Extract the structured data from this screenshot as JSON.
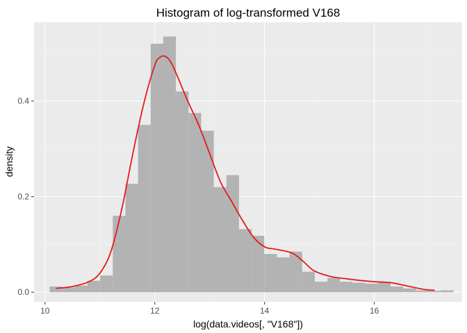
{
  "chart_data": {
    "type": "bar",
    "title": "Histogram of log-transformed V168",
    "xlabel": "log(data.videos[, \"V168\"])",
    "ylabel": "density",
    "xlim": [
      9.8,
      17.6
    ],
    "ylim": [
      -0.02,
      0.565
    ],
    "x_ticks": [
      10,
      12,
      14,
      16
    ],
    "y_ticks": [
      0.0,
      0.2,
      0.4
    ],
    "x_tick_labels": [
      "10",
      "12",
      "14",
      "16"
    ],
    "y_tick_labels": [
      "0.0",
      "0.2",
      "0.4"
    ],
    "grid": true,
    "background": "#ebebeb",
    "bar_color": "#b3b3b3",
    "line_color": "#e31a1c",
    "bin_width": 0.23,
    "bins": [
      {
        "x": 10.2,
        "density": 0.012
      },
      {
        "x": 10.43,
        "density": 0.01
      },
      {
        "x": 10.66,
        "density": 0.014
      },
      {
        "x": 10.89,
        "density": 0.024
      },
      {
        "x": 11.12,
        "density": 0.035
      },
      {
        "x": 11.35,
        "density": 0.16
      },
      {
        "x": 11.58,
        "density": 0.227
      },
      {
        "x": 11.81,
        "density": 0.35
      },
      {
        "x": 12.04,
        "density": 0.52
      },
      {
        "x": 12.27,
        "density": 0.535
      },
      {
        "x": 12.5,
        "density": 0.42
      },
      {
        "x": 12.73,
        "density": 0.375
      },
      {
        "x": 12.96,
        "density": 0.338
      },
      {
        "x": 13.19,
        "density": 0.22
      },
      {
        "x": 13.42,
        "density": 0.245
      },
      {
        "x": 13.65,
        "density": 0.132
      },
      {
        "x": 13.88,
        "density": 0.118
      },
      {
        "x": 14.11,
        "density": 0.08
      },
      {
        "x": 14.34,
        "density": 0.073
      },
      {
        "x": 14.57,
        "density": 0.085
      },
      {
        "x": 14.8,
        "density": 0.043
      },
      {
        "x": 15.03,
        "density": 0.022
      },
      {
        "x": 15.26,
        "density": 0.03
      },
      {
        "x": 15.49,
        "density": 0.022
      },
      {
        "x": 15.72,
        "density": 0.02
      },
      {
        "x": 15.95,
        "density": 0.018
      },
      {
        "x": 16.18,
        "density": 0.02
      },
      {
        "x": 16.41,
        "density": 0.012
      },
      {
        "x": 16.64,
        "density": 0.008
      },
      {
        "x": 16.87,
        "density": 0.004
      },
      {
        "x": 17.1,
        "density": 0.003
      },
      {
        "x": 17.33,
        "density": 0.004
      }
    ],
    "density_curve": {
      "x": [
        10.2,
        10.5,
        10.8,
        11.0,
        11.2,
        11.4,
        11.6,
        11.8,
        12.0,
        12.1,
        12.2,
        12.3,
        12.4,
        12.6,
        12.8,
        13.0,
        13.2,
        13.4,
        13.6,
        13.8,
        14.0,
        14.2,
        14.5,
        14.7,
        14.9,
        15.2,
        15.5,
        15.8,
        16.0,
        16.3,
        16.6,
        16.9,
        17.1
      ],
      "y": [
        0.008,
        0.012,
        0.022,
        0.04,
        0.085,
        0.175,
        0.29,
        0.395,
        0.475,
        0.492,
        0.493,
        0.48,
        0.455,
        0.4,
        0.35,
        0.29,
        0.23,
        0.19,
        0.15,
        0.115,
        0.095,
        0.09,
        0.082,
        0.065,
        0.045,
        0.033,
        0.028,
        0.024,
        0.022,
        0.02,
        0.013,
        0.006,
        0.004
      ]
    }
  }
}
